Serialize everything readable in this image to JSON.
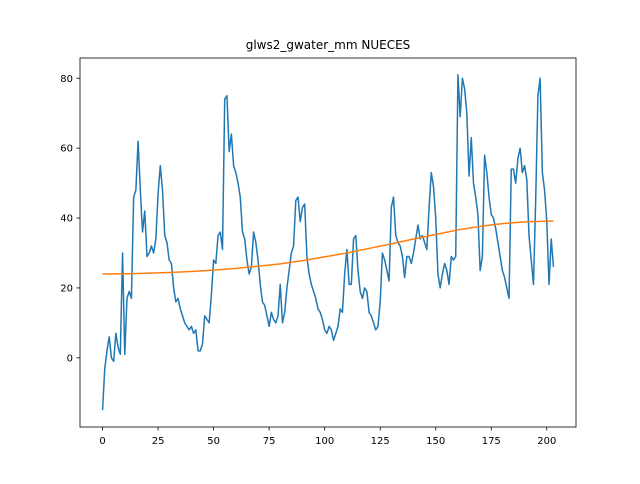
{
  "chart_data": {
    "type": "line",
    "title": "glws2_gwater_mm NUECES",
    "xlim": [
      -10.15,
      213.15
    ],
    "ylim": [
      -19.8,
      85.8
    ],
    "xticks": [
      0,
      25,
      50,
      75,
      100,
      125,
      150,
      175,
      200
    ],
    "yticks": [
      0,
      20,
      40,
      60,
      80
    ],
    "grid": false,
    "series": [
      {
        "color": "#1f77b4",
        "x": [
          0,
          1,
          2,
          3,
          4,
          5,
          6,
          7,
          8,
          9,
          10,
          11,
          12,
          13,
          14,
          15,
          16,
          17,
          18,
          19,
          20,
          21,
          22,
          23,
          24,
          25,
          26,
          27,
          28,
          29,
          30,
          31,
          32,
          33,
          34,
          35,
          36,
          37,
          38,
          39,
          40,
          41,
          42,
          43,
          44,
          45,
          46,
          47,
          48,
          49,
          50,
          51,
          52,
          53,
          54,
          55,
          56,
          57,
          58,
          59,
          60,
          61,
          62,
          63,
          64,
          65,
          66,
          67,
          68,
          69,
          70,
          71,
          72,
          73,
          74,
          75,
          76,
          77,
          78,
          79,
          80,
          81,
          82,
          83,
          84,
          85,
          86,
          87,
          88,
          89,
          90,
          91,
          92,
          93,
          94,
          95,
          96,
          97,
          98,
          99,
          100,
          101,
          102,
          103,
          104,
          105,
          106,
          107,
          108,
          109,
          110,
          111,
          112,
          113,
          114,
          115,
          116,
          117,
          118,
          119,
          120,
          121,
          122,
          123,
          124,
          125,
          126,
          127,
          128,
          129,
          130,
          131,
          132,
          133,
          134,
          135,
          136,
          137,
          138,
          139,
          140,
          141,
          142,
          143,
          144,
          145,
          146,
          147,
          148,
          149,
          150,
          151,
          152,
          153,
          154,
          155,
          156,
          157,
          158,
          159,
          160,
          161,
          162,
          163,
          164,
          165,
          166,
          167,
          168,
          169,
          170,
          171,
          172,
          173,
          174,
          175,
          176,
          177,
          178,
          179,
          180,
          181,
          182,
          183,
          184,
          185,
          186,
          187,
          188,
          189,
          190,
          191,
          192,
          193,
          194,
          195,
          196,
          197,
          198,
          199,
          200,
          201,
          202,
          203
        ],
        "values": [
          -15,
          -3,
          2,
          6,
          0,
          -1,
          7,
          3,
          1,
          30,
          1,
          17,
          19,
          17,
          46,
          48,
          62,
          48,
          36,
          42,
          29,
          30,
          32,
          30,
          34,
          47,
          55,
          48,
          35,
          33,
          28,
          27,
          20,
          16,
          17,
          14,
          12,
          10,
          9,
          8,
          9,
          7,
          8,
          2,
          2,
          4,
          12,
          11,
          10,
          18,
          28,
          27,
          35,
          36,
          31,
          74,
          75,
          59,
          64,
          55,
          53,
          50,
          46,
          36,
          34,
          28,
          24,
          26,
          36,
          33,
          28,
          21,
          16,
          15,
          12,
          9,
          13,
          11,
          10,
          12,
          21,
          10,
          13,
          20,
          25,
          30,
          32,
          45,
          46,
          39,
          43,
          44,
          29,
          24,
          21,
          19,
          17,
          14,
          13,
          11,
          8,
          7,
          9,
          8,
          5,
          7,
          9,
          14,
          13,
          24,
          31,
          21,
          21,
          34,
          35,
          25,
          19,
          17,
          20,
          19,
          13,
          12,
          10,
          8,
          9,
          16,
          30,
          28,
          25,
          22,
          43,
          46,
          35,
          33,
          32,
          29,
          23,
          29,
          29,
          27,
          30,
          34,
          38,
          34,
          35,
          33,
          31,
          43,
          53,
          49,
          40,
          24,
          20,
          24,
          27,
          25,
          21,
          29,
          28,
          29,
          81,
          69,
          80,
          77,
          70,
          52,
          63,
          50,
          46,
          41,
          25,
          29,
          58,
          53,
          46,
          41,
          40,
          37,
          33,
          29,
          25,
          23,
          20,
          17,
          54,
          54,
          50,
          57,
          60,
          53,
          55,
          51,
          35,
          28,
          21,
          45,
          75,
          80,
          53,
          48,
          39,
          21,
          34,
          26
        ]
      },
      {
        "color": "#ff7f0e",
        "x": [
          0,
          10,
          20,
          30,
          40,
          50,
          60,
          70,
          80,
          90,
          100,
          110,
          120,
          130,
          140,
          150,
          160,
          170,
          180,
          190,
          200,
          203
        ],
        "values": [
          24,
          24.05,
          24.2,
          24.4,
          24.7,
          25.1,
          25.6,
          26.2,
          26.9,
          27.8,
          28.9,
          30.0,
          31.3,
          32.6,
          34.0,
          35.3,
          36.6,
          37.6,
          38.4,
          38.9,
          39.1,
          39.1
        ]
      }
    ]
  }
}
